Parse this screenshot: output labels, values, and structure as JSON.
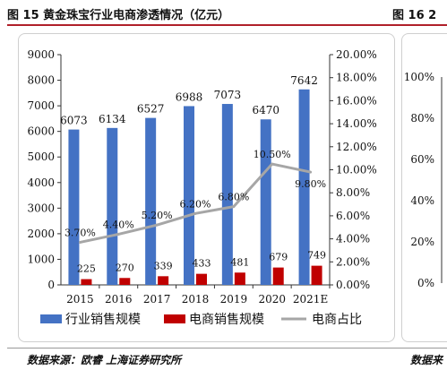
{
  "header": {
    "title": "图 15 黄金珠宝行业电商渗透情况（亿元）",
    "next_title": "图 16 2"
  },
  "footer": {
    "source": "数据来源：欧睿 上海证券研究所",
    "next_source": "数据来"
  },
  "next_chart": {
    "y_ticks": [
      "100%",
      "80%",
      "60%",
      "40%",
      "20%",
      "0%"
    ]
  },
  "chart_data": {
    "type": "bar",
    "categories": [
      "2015",
      "2016",
      "2017",
      "2018",
      "2019",
      "2020",
      "2021E"
    ],
    "series": [
      {
        "name": "行业销售规模",
        "type": "bar",
        "axis": "left",
        "color": "#4472C4",
        "values": [
          6073,
          6134,
          6527,
          6988,
          7073,
          6470,
          7642
        ],
        "labels": [
          "6073",
          "6134",
          "6527",
          "6988",
          "7073",
          "6470",
          "7642"
        ]
      },
      {
        "name": "电商销售规模",
        "type": "bar",
        "axis": "left",
        "color": "#C00000",
        "values": [
          225,
          270,
          339,
          433,
          481,
          679,
          749
        ],
        "labels": [
          "225",
          "270",
          "339",
          "433",
          "481",
          "679",
          "749"
        ]
      },
      {
        "name": "电商占比",
        "type": "line",
        "axis": "right",
        "color": "#A6A6A6",
        "values": [
          3.7,
          4.4,
          5.2,
          6.2,
          6.8,
          10.5,
          9.8
        ],
        "labels": [
          "3.70%",
          "4.40%",
          "5.20%",
          "6.20%",
          "6.80%",
          "10.50%",
          "9.80%"
        ]
      }
    ],
    "y_left": {
      "min": 0,
      "max": 9000,
      "ticks": [
        "0",
        "1000",
        "2000",
        "3000",
        "4000",
        "5000",
        "6000",
        "7000",
        "8000",
        "9000"
      ]
    },
    "y_right": {
      "min": 0,
      "max": 20,
      "ticks": [
        "0.00%",
        "2.00%",
        "4.00%",
        "6.00%",
        "8.00%",
        "10.00%",
        "12.00%",
        "14.00%",
        "16.00%",
        "18.00%",
        "20.00%"
      ]
    },
    "legend_position": "bottom",
    "grid": false
  }
}
